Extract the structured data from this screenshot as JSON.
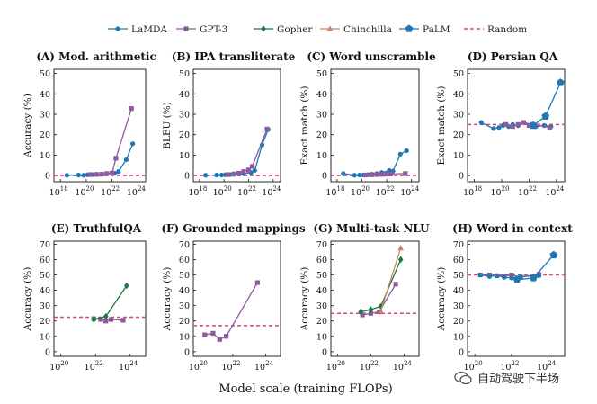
{
  "legend": [
    {
      "label": "LaMDA",
      "color": "#1f77b4",
      "marker": "circle"
    },
    {
      "label": "GPT-3",
      "color": "#8e5a9e",
      "marker": "square"
    },
    {
      "label": "Gopher",
      "color": "#1b7a3f",
      "marker": "diamond"
    },
    {
      "label": "Chinchilla",
      "color": "#c8876a",
      "marker": "triangle"
    },
    {
      "label": "PaLM",
      "color": "#1f77b4",
      "marker": "pentagon"
    },
    {
      "label": "Random",
      "color": "#d6467c",
      "marker": "dashed"
    }
  ],
  "xlabel": "Model scale (training FLOPs)",
  "watermark": "自动驾驶下半场",
  "chart_data": [
    {
      "type": "line",
      "title": "(A) Mod. arithmetic",
      "ylabel": "Accuracy (%)",
      "ylim": [
        -3,
        52
      ],
      "yticks": [
        0,
        10,
        20,
        30,
        40,
        50
      ],
      "xlim": [
        17.5,
        24.6
      ],
      "xticks": [
        18,
        20,
        22,
        24
      ],
      "random": 0,
      "series": [
        {
          "name": "LaMDA",
          "x": [
            18.5,
            19.4,
            19.8,
            20.1,
            20.5,
            20.8,
            21.2,
            21.6,
            22.2,
            22.5,
            23.1,
            23.6
          ],
          "y": [
            0.2,
            0.3,
            0.2,
            0.4,
            0.5,
            0.6,
            0.7,
            0.9,
            1.2,
            2.0,
            7.8,
            15.6
          ]
        },
        {
          "name": "GPT-3",
          "x": [
            20.3,
            20.8,
            21.2,
            21.6,
            22.0,
            22.3,
            23.5
          ],
          "y": [
            0.5,
            0.6,
            0.7,
            1.0,
            1.2,
            8.5,
            32.8
          ]
        }
      ]
    },
    {
      "type": "line",
      "title": "(B) IPA transliterate",
      "ylabel": "BLEU (%)",
      "ylim": [
        -3,
        52
      ],
      "yticks": [
        0,
        10,
        20,
        30,
        40,
        50
      ],
      "xlim": [
        17.5,
        24.6
      ],
      "xticks": [
        18,
        20,
        22,
        24
      ],
      "random": 0,
      "series": [
        {
          "name": "LaMDA",
          "x": [
            18.5,
            19.4,
            19.8,
            20.1,
            20.5,
            20.8,
            21.2,
            21.6,
            22.2,
            22.5,
            23.1,
            23.6
          ],
          "y": [
            0.2,
            0.3,
            0.3,
            0.4,
            0.5,
            0.6,
            0.8,
            1.0,
            1.5,
            2.5,
            15.0,
            22.5
          ]
        },
        {
          "name": "GPT-3",
          "x": [
            20.3,
            20.8,
            21.2,
            21.6,
            22.0,
            22.3,
            23.5
          ],
          "y": [
            0.5,
            0.8,
            1.2,
            2.0,
            2.8,
            4.5,
            22.8
          ]
        }
      ]
    },
    {
      "type": "line",
      "title": "(C) Word unscramble",
      "ylabel": "Exact match (%)",
      "ylim": [
        -3,
        52
      ],
      "yticks": [
        0,
        10,
        20,
        30,
        40,
        50
      ],
      "xlim": [
        17.5,
        24.6
      ],
      "xticks": [
        18,
        20,
        22,
        24
      ],
      "random": 0,
      "series": [
        {
          "name": "LaMDA",
          "x": [
            18.5,
            19.4,
            19.8,
            20.1,
            20.5,
            20.8,
            21.2,
            21.6,
            22.2,
            22.5,
            23.1,
            23.6
          ],
          "y": [
            1.0,
            0.2,
            0.3,
            0.3,
            0.5,
            0.7,
            1.0,
            1.5,
            2.5,
            2.2,
            10.5,
            12.2
          ]
        },
        {
          "name": "GPT-3",
          "x": [
            20.3,
            20.8,
            21.2,
            21.6,
            22.0,
            22.3,
            23.5
          ],
          "y": [
            0.3,
            0.4,
            0.5,
            0.6,
            0.7,
            0.8,
            1.0
          ]
        }
      ]
    },
    {
      "type": "line",
      "title": "(D) Persian QA",
      "ylabel": "Exact match (%)",
      "ylim": [
        -3,
        52
      ],
      "yticks": [
        0,
        10,
        20,
        30,
        40,
        50
      ],
      "xlim": [
        17.5,
        24.6
      ],
      "xticks": [
        18,
        20,
        22,
        24
      ],
      "random": 25,
      "series": [
        {
          "name": "LaMDA",
          "x": [
            18.5,
            19.4,
            19.8,
            20.1,
            20.5,
            20.8,
            21.2,
            21.6,
            22.2,
            22.5,
            23.1,
            23.6
          ],
          "y": [
            26.0,
            23.0,
            23.5,
            24.5,
            24.0,
            25.0,
            24.5,
            26.0,
            25.0,
            24.0,
            24.5,
            24.0
          ]
        },
        {
          "name": "GPT-3",
          "x": [
            20.3,
            20.8,
            21.2,
            21.6,
            22.0,
            22.3,
            23.5
          ],
          "y": [
            25.0,
            24.0,
            25.0,
            26.0,
            24.5,
            25.0,
            23.5
          ]
        },
        {
          "name": "PaLM",
          "x": [
            22.3,
            23.2,
            24.3
          ],
          "y": [
            24.5,
            29.0,
            45.5
          ]
        }
      ]
    },
    {
      "type": "line",
      "title": "(E) TruthfulQA",
      "ylabel": "Accuracy (%)",
      "ylim": [
        -3,
        72
      ],
      "yticks": [
        0,
        10,
        20,
        30,
        40,
        50,
        60,
        70
      ],
      "xlim": [
        19.6,
        24.9
      ],
      "xticks": [
        20,
        22,
        24
      ],
      "random": 22.5,
      "series": [
        {
          "name": "GPT-3",
          "x": [
            21.9,
            22.3,
            22.6,
            22.9,
            23.6
          ],
          "y": [
            21.5,
            21.0,
            20.0,
            21.0,
            20.5
          ]
        },
        {
          "name": "Gopher",
          "x": [
            21.9,
            22.6,
            23.8
          ],
          "y": [
            21.0,
            23.0,
            43.0
          ]
        }
      ]
    },
    {
      "type": "line",
      "title": "(F) Grounded mappings",
      "ylabel": "Accuracy (%)",
      "ylim": [
        -3,
        72
      ],
      "yticks": [
        0,
        10,
        20,
        30,
        40,
        50,
        60,
        70
      ],
      "xlim": [
        19.6,
        24.9
      ],
      "xticks": [
        20,
        22,
        24
      ],
      "random": 17,
      "series": [
        {
          "name": "GPT-3",
          "x": [
            20.3,
            20.8,
            21.2,
            21.6,
            23.5
          ],
          "y": [
            11.0,
            12.0,
            8.0,
            10.0,
            45.0
          ]
        }
      ]
    },
    {
      "type": "line",
      "title": "(G) Multi-task NLU",
      "ylabel": "Accuracy (%)",
      "ylim": [
        -3,
        72
      ],
      "yticks": [
        0,
        10,
        20,
        30,
        40,
        50,
        60,
        70
      ],
      "xlim": [
        19.6,
        24.9
      ],
      "xticks": [
        20,
        22,
        24
      ],
      "random": 25,
      "series": [
        {
          "name": "GPT-3",
          "x": [
            21.5,
            22.0,
            22.5,
            23.5
          ],
          "y": [
            24.0,
            25.0,
            26.0,
            44.0
          ]
        },
        {
          "name": "Gopher",
          "x": [
            21.4,
            22.0,
            22.6,
            23.8
          ],
          "y": [
            26.0,
            27.5,
            29.5,
            60.0
          ]
        },
        {
          "name": "Chinchilla",
          "x": [
            22.6,
            23.8
          ],
          "y": [
            26.5,
            67.5
          ]
        }
      ]
    },
    {
      "type": "line",
      "title": "(H) Word in context",
      "ylabel": "Accuracy (%)",
      "ylim": [
        -3,
        72
      ],
      "yticks": [
        0,
        10,
        20,
        30,
        40,
        50,
        60,
        70
      ],
      "xlim": [
        19.6,
        24.9
      ],
      "xticks": [
        20,
        22,
        24
      ],
      "random": 50,
      "series": [
        {
          "name": "GPT-3",
          "x": [
            20.3,
            20.8,
            21.2,
            21.6,
            22.0,
            22.5,
            23.5
          ],
          "y": [
            50.0,
            50.0,
            49.5,
            49.0,
            50.0,
            48.5,
            50.5
          ]
        },
        {
          "name": "LaMDA",
          "x": [
            20.3,
            20.8,
            21.2,
            21.6,
            22.0,
            22.5,
            23.5
          ],
          "y": [
            50.0,
            49.0,
            49.5,
            48.5,
            48.0,
            49.0,
            49.5
          ]
        },
        {
          "name": "PaLM",
          "x": [
            22.3,
            23.2,
            24.3
          ],
          "y": [
            47.0,
            48.0,
            63.0
          ]
        }
      ]
    }
  ]
}
